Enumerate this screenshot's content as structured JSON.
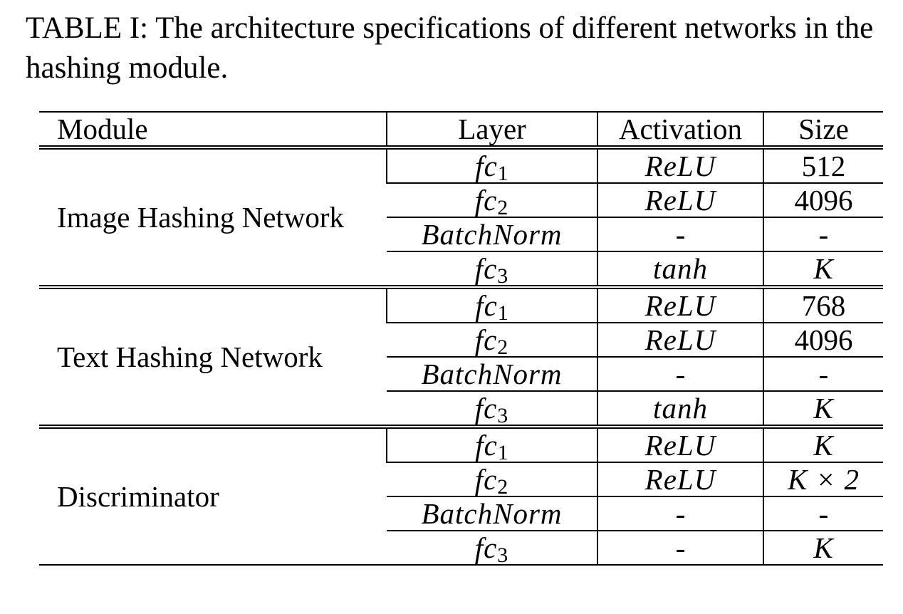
{
  "caption": "TABLE I: The architecture specifications of different networks in the hashing module.",
  "table": {
    "headers": {
      "module": "Module",
      "layer": "Layer",
      "activation": "Activation",
      "size": "Size"
    },
    "groups": [
      {
        "module": "Image Hashing Network",
        "rows": [
          {
            "layer_base": "fc",
            "layer_sub": "1",
            "activation": "ReLU",
            "size": "512"
          },
          {
            "layer_base": "fc",
            "layer_sub": "2",
            "activation": "ReLU",
            "size": "4096"
          },
          {
            "layer_base": "BatchNorm",
            "layer_sub": "",
            "activation": "-",
            "size": "-"
          },
          {
            "layer_base": "fc",
            "layer_sub": "3",
            "activation": "tanh",
            "size": "K"
          }
        ]
      },
      {
        "module": "Text Hashing Network",
        "rows": [
          {
            "layer_base": "fc",
            "layer_sub": "1",
            "activation": "ReLU",
            "size": "768"
          },
          {
            "layer_base": "fc",
            "layer_sub": "2",
            "activation": "ReLU",
            "size": "4096"
          },
          {
            "layer_base": "BatchNorm",
            "layer_sub": "",
            "activation": "-",
            "size": "-"
          },
          {
            "layer_base": "fc",
            "layer_sub": "3",
            "activation": "tanh",
            "size": "K"
          }
        ]
      },
      {
        "module": "Discriminator",
        "rows": [
          {
            "layer_base": "fc",
            "layer_sub": "1",
            "activation": "ReLU",
            "size": "K"
          },
          {
            "layer_base": "fc",
            "layer_sub": "2",
            "activation": "ReLU",
            "size": "K × 2"
          },
          {
            "layer_base": "BatchNorm",
            "layer_sub": "",
            "activation": "-",
            "size": "-"
          },
          {
            "layer_base": "fc",
            "layer_sub": "3",
            "activation": "-",
            "size": "K"
          }
        ]
      }
    ]
  }
}
